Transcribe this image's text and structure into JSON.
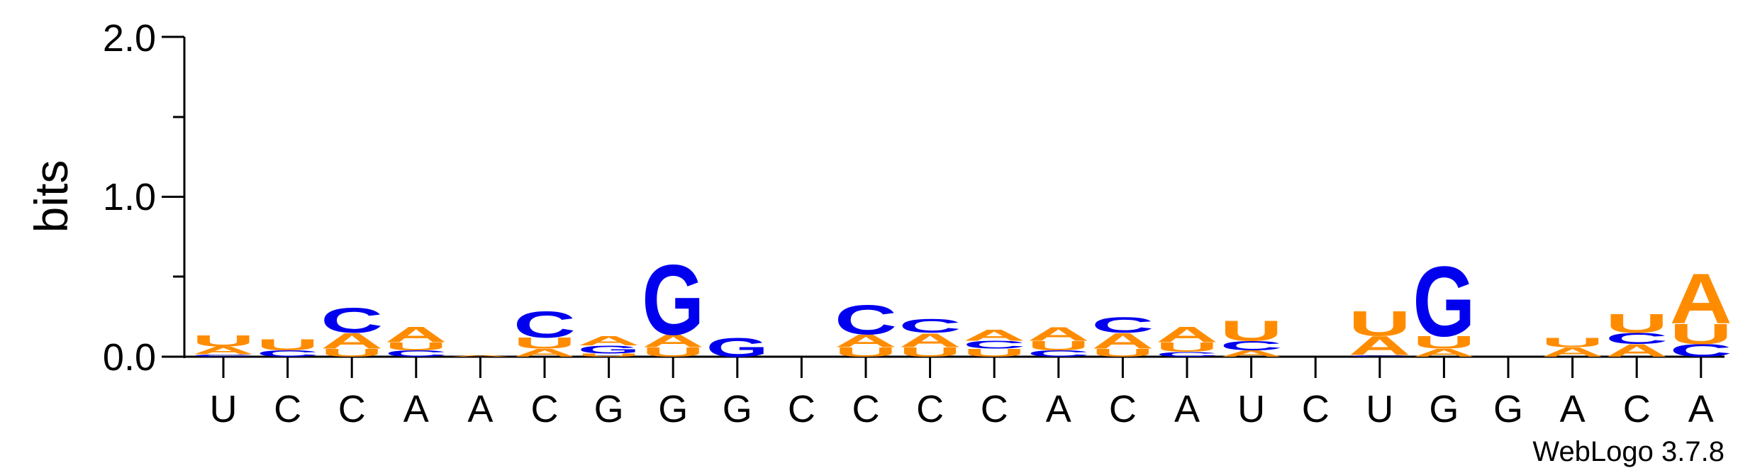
{
  "chart_data": {
    "type": "sequence-logo",
    "ylabel": "bits",
    "ylim": [
      0,
      2
    ],
    "yticks": [
      "0.0",
      "1.0",
      "2.0"
    ],
    "colors": {
      "A": "#FF8C00",
      "U": "#FF8C00",
      "C": "#0000EE",
      "G": "#0000EE"
    },
    "credit": "WebLogo 3.7.8",
    "positions": [
      {
        "label": "U",
        "stack": [
          [
            "C",
            0.015
          ],
          [
            "A",
            0.05
          ],
          [
            "U",
            0.07
          ]
        ]
      },
      {
        "label": "C",
        "stack": [
          [
            "C",
            0.04
          ],
          [
            "U",
            0.07
          ]
        ]
      },
      {
        "label": "C",
        "stack": [
          [
            "U",
            0.05
          ],
          [
            "A",
            0.1
          ],
          [
            "C",
            0.16
          ]
        ]
      },
      {
        "label": "A",
        "stack": [
          [
            "C",
            0.04
          ],
          [
            "U",
            0.05
          ],
          [
            "A",
            0.1
          ]
        ]
      },
      {
        "label": "A",
        "stack": [
          [
            "A",
            0.01
          ]
        ]
      },
      {
        "label": "C",
        "stack": [
          [
            "A",
            0.05
          ],
          [
            "U",
            0.07
          ],
          [
            "C",
            0.17
          ]
        ]
      },
      {
        "label": "G",
        "stack": [
          [
            "U",
            0.02
          ],
          [
            "G",
            0.05
          ],
          [
            "A",
            0.06
          ]
        ]
      },
      {
        "label": "G",
        "stack": [
          [
            "U",
            0.06
          ],
          [
            "A",
            0.08
          ],
          [
            "G",
            0.45
          ]
        ]
      },
      {
        "label": "G",
        "stack": [
          [
            "G",
            0.12
          ]
        ]
      },
      {
        "label": "C",
        "stack": []
      },
      {
        "label": "C",
        "stack": [
          [
            "U",
            0.06
          ],
          [
            "A",
            0.08
          ],
          [
            "C",
            0.19
          ]
        ]
      },
      {
        "label": "C",
        "stack": [
          [
            "U",
            0.06
          ],
          [
            "A",
            0.09
          ],
          [
            "C",
            0.09
          ]
        ]
      },
      {
        "label": "C",
        "stack": [
          [
            "U",
            0.05
          ],
          [
            "C",
            0.05
          ],
          [
            "A",
            0.07
          ]
        ]
      },
      {
        "label": "A",
        "stack": [
          [
            "C",
            0.04
          ],
          [
            "U",
            0.06
          ],
          [
            "A",
            0.09
          ]
        ]
      },
      {
        "label": "C",
        "stack": [
          [
            "U",
            0.05
          ],
          [
            "A",
            0.1
          ],
          [
            "C",
            0.1
          ]
        ]
      },
      {
        "label": "A",
        "stack": [
          [
            "C",
            0.03
          ],
          [
            "U",
            0.06
          ],
          [
            "A",
            0.1
          ]
        ]
      },
      {
        "label": "U",
        "stack": [
          [
            "A",
            0.04
          ],
          [
            "C",
            0.06
          ],
          [
            "U",
            0.13
          ]
        ]
      },
      {
        "label": "C",
        "stack": []
      },
      {
        "label": "U",
        "stack": [
          [
            "C",
            0.01
          ],
          [
            "A",
            0.12
          ],
          [
            "U",
            0.16
          ]
        ]
      },
      {
        "label": "G",
        "stack": [
          [
            "A",
            0.05
          ],
          [
            "U",
            0.08
          ],
          [
            "G",
            0.45
          ]
        ]
      },
      {
        "label": "G",
        "stack": []
      },
      {
        "label": "A",
        "stack": [
          [
            "A",
            0.06
          ],
          [
            "U",
            0.06
          ]
        ]
      },
      {
        "label": "C",
        "stack": [
          [
            "A",
            0.08
          ],
          [
            "C",
            0.07
          ],
          [
            "U",
            0.12
          ]
        ]
      },
      {
        "label": "A",
        "stack": [
          [
            "C",
            0.08
          ],
          [
            "U",
            0.13
          ],
          [
            "A",
            0.32
          ]
        ]
      }
    ]
  }
}
